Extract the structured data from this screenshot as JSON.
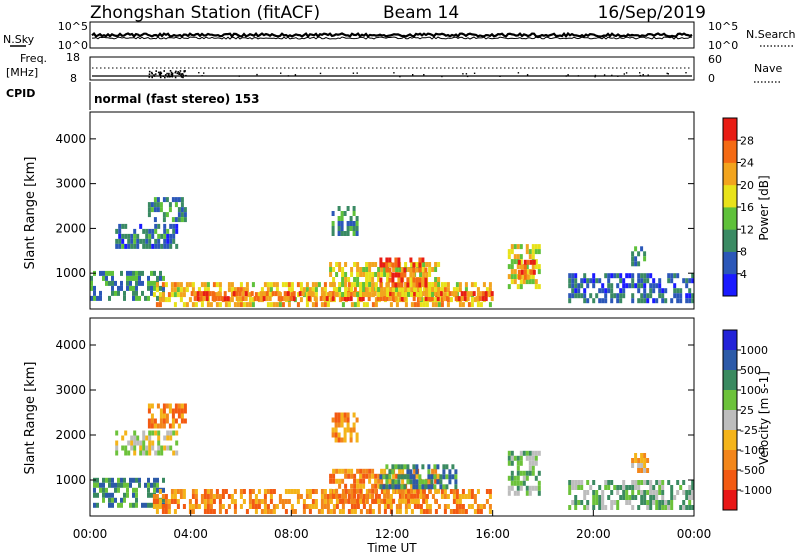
{
  "header": {
    "station": "Zhongshan Station (fitACF)",
    "beam": "Beam 14",
    "date": "16/Sep/2019"
  },
  "top_panels": {
    "nsky_label": "N.Sky",
    "nsearch_label": "N.Search",
    "nsky_ticks": [
      "10^5",
      "10^0"
    ],
    "nsearch_ticks": [
      "10^5",
      "10^0"
    ],
    "freq_label_1": "Freq.",
    "freq_label_2": "[MHz]",
    "freq_ticks": [
      "18",
      "8"
    ],
    "nave_label": "Nave",
    "nave_ticks": [
      "60",
      "0"
    ],
    "cpid_label": "CPID",
    "cpid_text": "normal (fast stereo) 153"
  },
  "chart_data": [
    {
      "type": "heatmap",
      "name": "power",
      "ylabel": "Slant Range [km]",
      "xlabel": "",
      "ylim": [
        200,
        4600
      ],
      "yticks": [
        "1000",
        "2000",
        "3000",
        "4000"
      ],
      "colorbar_label": "Power [dB]",
      "colorbar_ticks": [
        "4",
        "8",
        "12",
        "16",
        "20",
        "24",
        "28"
      ],
      "colorbar_colors": [
        "#1a1aff",
        "#2b57b8",
        "#3a8a63",
        "#5fc13a",
        "#e8e21a",
        "#f2a41e",
        "#f46a14",
        "#e81c14"
      ],
      "colorbar_range": [
        0,
        32
      ],
      "blobs": [
        {
          "t0": 0.0,
          "t1": 2.9,
          "r0": 420,
          "r1": 1050,
          "v": 9
        },
        {
          "t0": 1.0,
          "t1": 3.5,
          "r0": 1600,
          "r1": 2100,
          "v": 8
        },
        {
          "t0": 2.3,
          "t1": 3.8,
          "r0": 2200,
          "r1": 2700,
          "v": 9
        },
        {
          "t0": 2.5,
          "t1": 15.9,
          "r0": 350,
          "r1": 800,
          "v": 20
        },
        {
          "t0": 4.0,
          "t1": 16.0,
          "r0": 380,
          "r1": 600,
          "v": 26
        },
        {
          "t0": 9.5,
          "t1": 13.8,
          "r0": 550,
          "r1": 1250,
          "v": 19
        },
        {
          "t0": 11.5,
          "t1": 13.4,
          "r0": 700,
          "r1": 1350,
          "v": 27
        },
        {
          "t0": 9.6,
          "t1": 10.6,
          "r0": 1900,
          "r1": 2500,
          "v": 10
        },
        {
          "t0": 16.6,
          "t1": 17.9,
          "r0": 750,
          "r1": 1650,
          "v": 18
        },
        {
          "t0": 17.0,
          "t1": 17.7,
          "r0": 900,
          "r1": 1300,
          "v": 26
        },
        {
          "t0": 19.0,
          "t1": 23.9,
          "r0": 350,
          "r1": 1000,
          "v": 7
        },
        {
          "t0": 21.5,
          "t1": 22.1,
          "r0": 1200,
          "r1": 1600,
          "v": 9
        }
      ]
    },
    {
      "type": "heatmap",
      "name": "velocity",
      "ylabel": "Slant Range [km]",
      "xlabel": "Time UT",
      "ylim": [
        200,
        4600
      ],
      "yticks": [
        "1000",
        "2000",
        "3000",
        "4000"
      ],
      "xticks": [
        "00:00",
        "04:00",
        "08:00",
        "12:00",
        "16:00",
        "20:00",
        "00:00"
      ],
      "colorbar_label": "Velocity [m s-1]",
      "colorbar_ticks": [
        "1000",
        "500",
        "100",
        "25",
        "-25",
        "-100",
        "-500",
        "-1000"
      ],
      "colorbar_colors": [
        "#2222d8",
        "#2c5aa8",
        "#3a8a60",
        "#6cc23a",
        "#bdbdbd",
        "#f4b41a",
        "#f3861a",
        "#f35a12",
        "#e81616"
      ],
      "blobs": [
        {
          "t0": 0.0,
          "t1": 2.9,
          "r0": 420,
          "r1": 1050,
          "v": 2
        },
        {
          "t0": 1.0,
          "t1": 3.5,
          "r0": 1600,
          "r1": 2100,
          "v": 4
        },
        {
          "t0": 2.3,
          "t1": 3.8,
          "r0": 2200,
          "r1": 2700,
          "v": 6
        },
        {
          "t0": 2.5,
          "t1": 15.9,
          "r0": 350,
          "r1": 800,
          "v": 6
        },
        {
          "t0": 9.5,
          "t1": 13.8,
          "r0": 550,
          "r1": 1250,
          "v": 6
        },
        {
          "t0": 11.5,
          "t1": 14.5,
          "r0": 800,
          "r1": 1350,
          "v": 2
        },
        {
          "t0": 9.6,
          "t1": 10.6,
          "r0": 1900,
          "r1": 2500,
          "v": 6
        },
        {
          "t0": 16.6,
          "t1": 17.9,
          "r0": 750,
          "r1": 1650,
          "v": 3
        },
        {
          "t0": 19.0,
          "t1": 23.9,
          "r0": 350,
          "r1": 1000,
          "v": 3
        },
        {
          "t0": 21.5,
          "t1": 22.1,
          "r0": 1200,
          "r1": 1600,
          "v": 5
        }
      ]
    }
  ]
}
